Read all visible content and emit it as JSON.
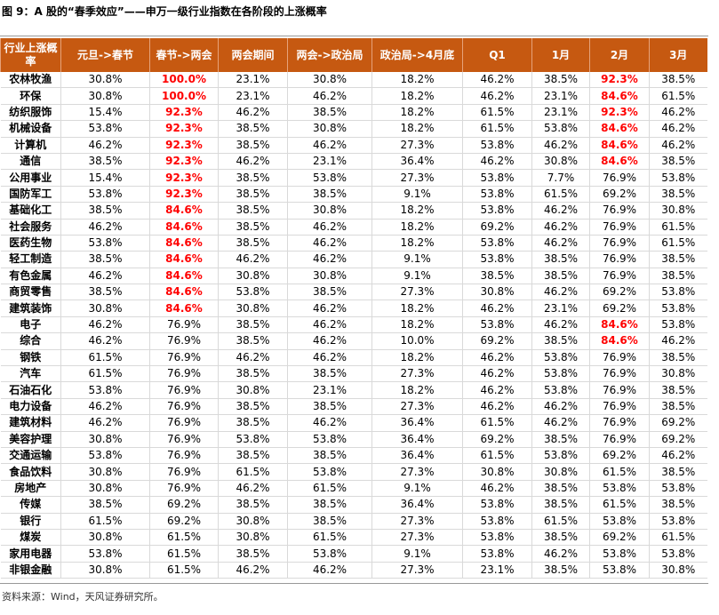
{
  "title": "图 9：A 股的“春季效应”——申万一级行业指数在各阶段的上涨概率",
  "table": {
    "header": [
      "行业上涨概率",
      "元旦->春节",
      "春节->两会",
      "两会期间",
      "两会->政治局",
      "政治局->4月底",
      "Q1",
      "1月",
      "2月",
      "3月"
    ],
    "rows": [
      [
        "农林牧渔",
        "30.8%",
        "100.0%",
        "23.1%",
        "30.8%",
        "18.2%",
        "46.2%",
        "38.5%",
        "92.3%",
        "38.5%"
      ],
      [
        "环保",
        "30.8%",
        "100.0%",
        "23.1%",
        "46.2%",
        "18.2%",
        "46.2%",
        "23.1%",
        "84.6%",
        "61.5%"
      ],
      [
        "纺织服饰",
        "15.4%",
        "92.3%",
        "46.2%",
        "38.5%",
        "18.2%",
        "61.5%",
        "23.1%",
        "92.3%",
        "46.2%"
      ],
      [
        "机械设备",
        "53.8%",
        "92.3%",
        "38.5%",
        "30.8%",
        "18.2%",
        "61.5%",
        "53.8%",
        "84.6%",
        "46.2%"
      ],
      [
        "计算机",
        "46.2%",
        "92.3%",
        "38.5%",
        "46.2%",
        "27.3%",
        "53.8%",
        "46.2%",
        "84.6%",
        "46.2%"
      ],
      [
        "通信",
        "38.5%",
        "92.3%",
        "46.2%",
        "23.1%",
        "36.4%",
        "46.2%",
        "30.8%",
        "84.6%",
        "38.5%"
      ],
      [
        "公用事业",
        "15.4%",
        "92.3%",
        "38.5%",
        "53.8%",
        "27.3%",
        "53.8%",
        "7.7%",
        "76.9%",
        "53.8%"
      ],
      [
        "国防军工",
        "53.8%",
        "92.3%",
        "38.5%",
        "38.5%",
        "9.1%",
        "53.8%",
        "61.5%",
        "69.2%",
        "38.5%"
      ],
      [
        "基础化工",
        "38.5%",
        "84.6%",
        "38.5%",
        "30.8%",
        "18.2%",
        "53.8%",
        "46.2%",
        "76.9%",
        "30.8%"
      ],
      [
        "社会服务",
        "46.2%",
        "84.6%",
        "38.5%",
        "46.2%",
        "18.2%",
        "69.2%",
        "46.2%",
        "76.9%",
        "61.5%"
      ],
      [
        "医药生物",
        "53.8%",
        "84.6%",
        "38.5%",
        "46.2%",
        "18.2%",
        "53.8%",
        "46.2%",
        "76.9%",
        "61.5%"
      ],
      [
        "轻工制造",
        "38.5%",
        "84.6%",
        "46.2%",
        "46.2%",
        "9.1%",
        "53.8%",
        "38.5%",
        "76.9%",
        "38.5%"
      ],
      [
        "有色金属",
        "46.2%",
        "84.6%",
        "30.8%",
        "30.8%",
        "9.1%",
        "38.5%",
        "38.5%",
        "76.9%",
        "38.5%"
      ],
      [
        "商贸零售",
        "38.5%",
        "84.6%",
        "53.8%",
        "38.5%",
        "27.3%",
        "30.8%",
        "46.2%",
        "69.2%",
        "53.8%"
      ],
      [
        "建筑装饰",
        "30.8%",
        "84.6%",
        "30.8%",
        "46.2%",
        "18.2%",
        "46.2%",
        "23.1%",
        "69.2%",
        "53.8%"
      ],
      [
        "电子",
        "46.2%",
        "76.9%",
        "38.5%",
        "46.2%",
        "18.2%",
        "53.8%",
        "46.2%",
        "84.6%",
        "53.8%"
      ],
      [
        "综合",
        "46.2%",
        "76.9%",
        "38.5%",
        "46.2%",
        "10.0%",
        "69.2%",
        "38.5%",
        "84.6%",
        "46.2%"
      ],
      [
        "钢铁",
        "61.5%",
        "76.9%",
        "46.2%",
        "46.2%",
        "18.2%",
        "46.2%",
        "53.8%",
        "76.9%",
        "38.5%"
      ],
      [
        "汽车",
        "61.5%",
        "76.9%",
        "38.5%",
        "38.5%",
        "27.3%",
        "46.2%",
        "53.8%",
        "76.9%",
        "30.8%"
      ],
      [
        "石油石化",
        "53.8%",
        "76.9%",
        "30.8%",
        "23.1%",
        "18.2%",
        "46.2%",
        "53.8%",
        "76.9%",
        "38.5%"
      ],
      [
        "电力设备",
        "46.2%",
        "76.9%",
        "38.5%",
        "38.5%",
        "27.3%",
        "46.2%",
        "46.2%",
        "76.9%",
        "38.5%"
      ],
      [
        "建筑材料",
        "46.2%",
        "76.9%",
        "38.5%",
        "46.2%",
        "36.4%",
        "61.5%",
        "46.2%",
        "76.9%",
        "69.2%"
      ],
      [
        "美容护理",
        "30.8%",
        "76.9%",
        "53.8%",
        "53.8%",
        "36.4%",
        "69.2%",
        "38.5%",
        "76.9%",
        "69.2%"
      ],
      [
        "交通运输",
        "53.8%",
        "76.9%",
        "38.5%",
        "38.5%",
        "36.4%",
        "61.5%",
        "53.8%",
        "69.2%",
        "46.2%"
      ],
      [
        "食品饮料",
        "30.8%",
        "76.9%",
        "61.5%",
        "53.8%",
        "27.3%",
        "30.8%",
        "30.8%",
        "61.5%",
        "38.5%"
      ],
      [
        "房地产",
        "30.8%",
        "76.9%",
        "46.2%",
        "61.5%",
        "9.1%",
        "46.2%",
        "38.5%",
        "53.8%",
        "53.8%"
      ],
      [
        "传媒",
        "38.5%",
        "69.2%",
        "38.5%",
        "38.5%",
        "36.4%",
        "53.8%",
        "38.5%",
        "61.5%",
        "38.5%"
      ],
      [
        "银行",
        "61.5%",
        "69.2%",
        "30.8%",
        "38.5%",
        "27.3%",
        "53.8%",
        "61.5%",
        "53.8%",
        "53.8%"
      ],
      [
        "煤炭",
        "30.8%",
        "61.5%",
        "30.8%",
        "61.5%",
        "27.3%",
        "53.8%",
        "38.5%",
        "69.2%",
        "61.5%"
      ],
      [
        "家用电器",
        "53.8%",
        "61.5%",
        "38.5%",
        "53.8%",
        "9.1%",
        "53.8%",
        "46.2%",
        "53.8%",
        "53.8%"
      ],
      [
        "非银金融",
        "30.8%",
        "61.5%",
        "46.2%",
        "46.2%",
        "27.3%",
        "23.1%",
        "38.5%",
        "53.8%",
        "30.8%"
      ]
    ],
    "highlight_color": "#ff0000",
    "highlighted_cells": [
      [
        0,
        2
      ],
      [
        1,
        2
      ],
      [
        2,
        2
      ],
      [
        3,
        2
      ],
      [
        4,
        2
      ],
      [
        5,
        2
      ],
      [
        6,
        2
      ],
      [
        7,
        2
      ],
      [
        8,
        2
      ],
      [
        9,
        2
      ],
      [
        10,
        2
      ],
      [
        11,
        2
      ],
      [
        12,
        2
      ],
      [
        13,
        2
      ],
      [
        14,
        2
      ],
      [
        0,
        8
      ],
      [
        1,
        8
      ],
      [
        2,
        8
      ],
      [
        3,
        8
      ],
      [
        4,
        8
      ],
      [
        5,
        8
      ],
      [
        15,
        8
      ],
      [
        16,
        8
      ]
    ]
  },
  "source": "资料来源：Wind，天风证券研究所。"
}
